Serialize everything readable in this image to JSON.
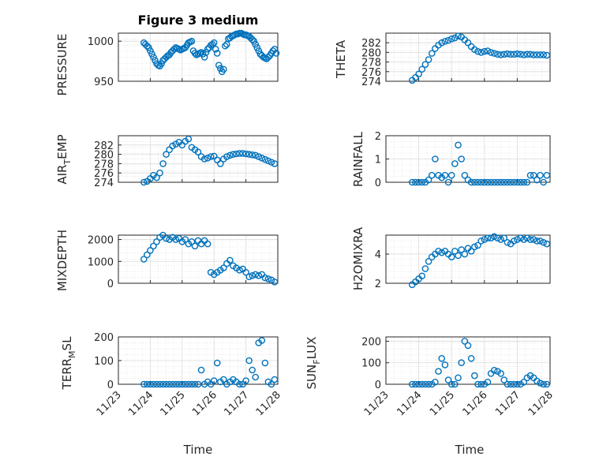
{
  "colors": {
    "marker": "#0072BD",
    "axis": "#262626",
    "grid": "#dcdcdc"
  },
  "chart_data": [
    {
      "type": "scatter",
      "title": "Figure 3 medium",
      "xlabel": "",
      "ylabel": "PRESSURE",
      "ylim": [
        950,
        1010
      ],
      "yticks": [
        950,
        1000
      ],
      "grid": true,
      "x": [
        0.8,
        0.85,
        0.9,
        0.95,
        1.0,
        1.05,
        1.1,
        1.15,
        1.2,
        1.25,
        1.3,
        1.35,
        1.4,
        1.45,
        1.5,
        1.55,
        1.6,
        1.65,
        1.7,
        1.75,
        1.8,
        1.85,
        1.9,
        1.95,
        2.0,
        2.05,
        2.1,
        2.15,
        2.2,
        2.25,
        2.3,
        2.35,
        2.4,
        2.45,
        2.5,
        2.55,
        2.6,
        2.65,
        2.7,
        2.75,
        2.8,
        2.85,
        2.9,
        2.95,
        3.0,
        3.05,
        3.1,
        3.15,
        3.2,
        3.25,
        3.3,
        3.35,
        3.4,
        3.45,
        3.5,
        3.55,
        3.6,
        3.65,
        3.7,
        3.75,
        3.8,
        3.85,
        3.9,
        3.95,
        4.0,
        4.05,
        4.1,
        4.15,
        4.2,
        4.25,
        4.3,
        4.35,
        4.4,
        4.45,
        4.5,
        4.55,
        4.6,
        4.65,
        4.7,
        4.75,
        4.8,
        4.85,
        4.9,
        4.95
      ],
      "y": [
        998,
        996,
        994,
        992,
        988,
        984,
        980,
        976,
        972,
        970,
        969,
        972,
        976,
        978,
        980,
        982,
        983,
        986,
        988,
        990,
        992,
        991,
        990,
        989,
        990,
        991,
        992,
        995,
        998,
        999,
        1000,
        988,
        985,
        983,
        984,
        985,
        986,
        984,
        980,
        986,
        990,
        992,
        995,
        996,
        998,
        990,
        985,
        970,
        966,
        962,
        965,
        994,
        996,
        1003,
        1004,
        1006,
        1007,
        1008,
        1009,
        1009,
        1010,
        1010,
        1009,
        1008,
        1008,
        1007,
        1006,
        1004,
        1002,
        1000,
        996,
        992,
        988,
        984,
        982,
        980,
        979,
        978,
        980,
        982,
        985,
        988,
        990,
        985
      ]
    },
    {
      "type": "scatter",
      "xlabel": "",
      "ylabel": "THETA",
      "ylim": [
        274,
        284
      ],
      "yticks": [
        274,
        276,
        278,
        280,
        282
      ],
      "grid": true,
      "x": [
        0.8,
        0.9,
        1.0,
        1.1,
        1.2,
        1.3,
        1.4,
        1.5,
        1.6,
        1.7,
        1.8,
        1.9,
        2.0,
        2.1,
        2.2,
        2.3,
        2.4,
        2.5,
        2.6,
        2.7,
        2.8,
        2.9,
        3.0,
        3.1,
        3.2,
        3.3,
        3.4,
        3.5,
        3.6,
        3.7,
        3.8,
        3.9,
        4.0,
        4.1,
        4.2,
        4.3,
        4.4,
        4.5,
        4.6,
        4.7,
        4.8,
        4.9
      ],
      "y": [
        274.2,
        274.8,
        275.5,
        276.5,
        277.5,
        278.5,
        279.8,
        280.8,
        281.5,
        282.0,
        282.3,
        282.5,
        282.8,
        283.0,
        283.4,
        283.2,
        282.6,
        282.0,
        281.2,
        280.6,
        280.2,
        280.0,
        280.2,
        280.3,
        280.0,
        279.8,
        279.6,
        279.5,
        279.6,
        279.7,
        279.6,
        279.6,
        279.7,
        279.6,
        279.5,
        279.6,
        279.6,
        279.5,
        279.5,
        279.5,
        279.5,
        279.4
      ]
    },
    {
      "type": "scatter",
      "xlabel": "",
      "ylabel": "AIR_TEMP",
      "ylim": [
        274,
        284
      ],
      "yticks": [
        274,
        276,
        278,
        280,
        282
      ],
      "grid": true,
      "x": [
        0.8,
        0.9,
        1.0,
        1.1,
        1.2,
        1.3,
        1.4,
        1.5,
        1.6,
        1.7,
        1.8,
        1.9,
        2.0,
        2.1,
        2.2,
        2.3,
        2.4,
        2.5,
        2.6,
        2.7,
        2.8,
        2.9,
        3.0,
        3.1,
        3.2,
        3.3,
        3.4,
        3.5,
        3.6,
        3.7,
        3.8,
        3.9,
        4.0,
        4.1,
        4.2,
        4.3,
        4.4,
        4.5,
        4.6,
        4.7,
        4.8,
        4.9
      ],
      "y": [
        274.0,
        274.2,
        274.8,
        275.5,
        275.0,
        276.0,
        278.0,
        280.0,
        281.0,
        281.8,
        282.2,
        282.6,
        282.0,
        282.8,
        283.3,
        281.5,
        281.0,
        280.5,
        279.5,
        279.0,
        279.2,
        279.5,
        279.6,
        278.8,
        278.0,
        279.0,
        279.5,
        279.8,
        280.0,
        280.1,
        280.2,
        280.2,
        280.1,
        280.0,
        279.9,
        279.8,
        279.5,
        279.2,
        278.9,
        278.6,
        278.3,
        278.0
      ]
    },
    {
      "type": "scatter",
      "xlabel": "",
      "ylabel": "RAINFALL",
      "ylim": [
        0,
        2
      ],
      "yticks": [
        0,
        1,
        2
      ],
      "grid": true,
      "x": [
        0.8,
        0.9,
        1.0,
        1.1,
        1.2,
        1.3,
        1.4,
        1.5,
        1.6,
        1.7,
        1.8,
        1.9,
        2.0,
        2.1,
        2.2,
        2.3,
        2.4,
        2.5,
        2.6,
        2.7,
        2.8,
        2.9,
        3.0,
        3.1,
        3.2,
        3.3,
        3.4,
        3.5,
        3.6,
        3.7,
        3.8,
        3.9,
        4.0,
        4.1,
        4.2,
        4.3,
        4.4,
        4.5,
        4.6,
        4.7,
        4.8,
        4.9
      ],
      "y": [
        0,
        0,
        0,
        0,
        0,
        0.1,
        0.3,
        1.0,
        0.3,
        0.2,
        0.3,
        0,
        0.3,
        0.8,
        1.6,
        1.0,
        0.3,
        0.1,
        0,
        0,
        0,
        0,
        0,
        0,
        0,
        0,
        0,
        0,
        0,
        0,
        0,
        0,
        0,
        0,
        0,
        0,
        0.3,
        0.3,
        0.1,
        0.3,
        0,
        0.3
      ]
    },
    {
      "type": "scatter",
      "xlabel": "",
      "ylabel": "MIXDEPTH",
      "ylim": [
        0,
        2200
      ],
      "yticks": [
        0,
        1000,
        2000
      ],
      "grid": true,
      "x": [
        0.8,
        0.9,
        1.0,
        1.1,
        1.2,
        1.3,
        1.4,
        1.5,
        1.6,
        1.7,
        1.8,
        1.9,
        2.0,
        2.1,
        2.2,
        2.3,
        2.4,
        2.5,
        2.6,
        2.7,
        2.8,
        2.9,
        3.0,
        3.1,
        3.2,
        3.3,
        3.4,
        3.5,
        3.6,
        3.7,
        3.8,
        3.9,
        4.0,
        4.1,
        4.2,
        4.3,
        4.4,
        4.5,
        4.6,
        4.7,
        4.8,
        4.9
      ],
      "y": [
        1100,
        1300,
        1500,
        1700,
        1900,
        2100,
        2200,
        2050,
        2000,
        2100,
        2000,
        2050,
        1900,
        2000,
        1800,
        1900,
        1700,
        1950,
        1800,
        1950,
        1800,
        500,
        400,
        500,
        600,
        700,
        900,
        1050,
        800,
        700,
        600,
        650,
        500,
        300,
        350,
        400,
        350,
        400,
        250,
        200,
        150,
        60
      ]
    },
    {
      "type": "scatter",
      "xlabel": "",
      "ylabel": "H2OMIXRA",
      "ylim": [
        2,
        5.3
      ],
      "yticks": [
        2,
        4
      ],
      "grid": true,
      "x": [
        0.8,
        0.9,
        1.0,
        1.1,
        1.2,
        1.3,
        1.4,
        1.5,
        1.6,
        1.7,
        1.8,
        1.9,
        2.0,
        2.1,
        2.2,
        2.3,
        2.4,
        2.5,
        2.6,
        2.7,
        2.8,
        2.9,
        3.0,
        3.1,
        3.2,
        3.3,
        3.4,
        3.5,
        3.6,
        3.7,
        3.8,
        3.9,
        4.0,
        4.1,
        4.2,
        4.3,
        4.4,
        4.5,
        4.6,
        4.7,
        4.8,
        4.9
      ],
      "y": [
        1.9,
        2.1,
        2.3,
        2.5,
        3.0,
        3.5,
        3.8,
        4.0,
        4.2,
        4.1,
        4.2,
        4.0,
        3.8,
        4.2,
        3.9,
        4.3,
        4.0,
        4.4,
        4.2,
        4.5,
        4.6,
        4.9,
        5.0,
        5.1,
        5.1,
        5.2,
        5.1,
        5.0,
        5.1,
        4.8,
        4.7,
        4.9,
        5.0,
        5.1,
        5.0,
        5.1,
        5.0,
        5.0,
        4.9,
        4.9,
        4.8,
        4.7
      ]
    },
    {
      "type": "scatter",
      "xlabel": "Time",
      "ylabel": "TERR_MSL",
      "ylim": [
        0,
        200
      ],
      "yticks": [
        0,
        100,
        200
      ],
      "grid": true,
      "x": [
        0.8,
        0.9,
        1.0,
        1.1,
        1.2,
        1.3,
        1.4,
        1.5,
        1.6,
        1.7,
        1.8,
        1.9,
        2.0,
        2.1,
        2.2,
        2.3,
        2.4,
        2.5,
        2.6,
        2.7,
        2.8,
        2.9,
        3.0,
        3.1,
        3.2,
        3.3,
        3.4,
        3.5,
        3.6,
        3.7,
        3.8,
        3.9,
        4.0,
        4.1,
        4.2,
        4.3,
        4.4,
        4.5,
        4.6,
        4.7,
        4.8,
        4.9
      ],
      "y": [
        0,
        0,
        0,
        0,
        0,
        0,
        0,
        0,
        0,
        0,
        0,
        0,
        0,
        0,
        0,
        0,
        0,
        0,
        60,
        0,
        10,
        0,
        15,
        90,
        10,
        20,
        0,
        10,
        20,
        10,
        0,
        0,
        15,
        100,
        60,
        30,
        175,
        185,
        90,
        10,
        0,
        20
      ],
      "xticks": [
        "11/23",
        "11/24",
        "11/25",
        "11/26",
        "11/27",
        "11/28"
      ]
    },
    {
      "type": "scatter",
      "xlabel": "Time",
      "ylabel": "SUN_FLUX",
      "ylim": [
        0,
        220
      ],
      "yticks": [
        0,
        100,
        200
      ],
      "grid": true,
      "x": [
        0.8,
        0.9,
        1.0,
        1.1,
        1.2,
        1.3,
        1.4,
        1.5,
        1.6,
        1.7,
        1.8,
        1.9,
        2.0,
        2.1,
        2.2,
        2.3,
        2.4,
        2.5,
        2.6,
        2.7,
        2.8,
        2.9,
        3.0,
        3.1,
        3.2,
        3.3,
        3.4,
        3.5,
        3.6,
        3.7,
        3.8,
        3.9,
        4.0,
        4.1,
        4.2,
        4.3,
        4.4,
        4.5,
        4.6,
        4.7,
        4.8,
        4.9
      ],
      "y": [
        0,
        0,
        0,
        0,
        0,
        0,
        0,
        10,
        60,
        120,
        90,
        20,
        0,
        0,
        30,
        100,
        200,
        180,
        120,
        40,
        0,
        0,
        0,
        10,
        50,
        65,
        60,
        50,
        20,
        0,
        0,
        0,
        0,
        0,
        10,
        30,
        40,
        30,
        15,
        5,
        0,
        0
      ],
      "xticks": [
        "11/23",
        "11/24",
        "11/25",
        "11/26",
        "11/27",
        "11/28"
      ]
    }
  ],
  "labels": {
    "title": "Figure 3 medium",
    "ylab1": "PRESSURE",
    "ylab2": "THETA",
    "ylab3a": "AIR",
    "ylab3s": "T",
    "ylab3b": "EMP",
    "ylab4": "RAINFALL",
    "ylab5": "MIXDEPTH",
    "ylab6": "H2OMIXRA",
    "ylab7a": "TERR",
    "ylab7s": "M",
    "ylab7b": "SL",
    "ylab8a": "SUN",
    "ylab8s": "F",
    "ylab8b": "LUX",
    "xlabel_left": "Time",
    "xlabel_right": "Time"
  }
}
